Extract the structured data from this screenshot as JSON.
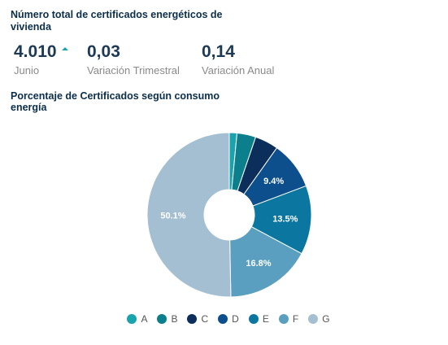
{
  "header": {
    "title": "Número total de certificados energéticos de vivienda"
  },
  "kpis": [
    {
      "value": "4.010",
      "label": "Junio",
      "trend": "up"
    },
    {
      "value": "0,03",
      "label": "Variación Trimestral"
    },
    {
      "value": "0,14",
      "label": "Variación Anual"
    }
  ],
  "colors": {
    "trend_up": "#18a3ad"
  },
  "chart_data": {
    "type": "pie",
    "subtype": "donut",
    "title": "Porcentaje de Certificados según consumo energía",
    "categories": [
      "A",
      "B",
      "C",
      "D",
      "E",
      "F",
      "G"
    ],
    "values": [
      1.5,
      3.7,
      4.6,
      9.4,
      13.5,
      16.8,
      50.1
    ],
    "data_labels": [
      "",
      "",
      "",
      "9.4%",
      "13.5%",
      "16.8%",
      "50.1%"
    ],
    "colors": [
      "#18a3ad",
      "#0b7f8c",
      "#0b2e5a",
      "#0c4f8c",
      "#0b77a1",
      "#5a9fbf",
      "#a3bfd1"
    ],
    "legend_position": "bottom"
  }
}
